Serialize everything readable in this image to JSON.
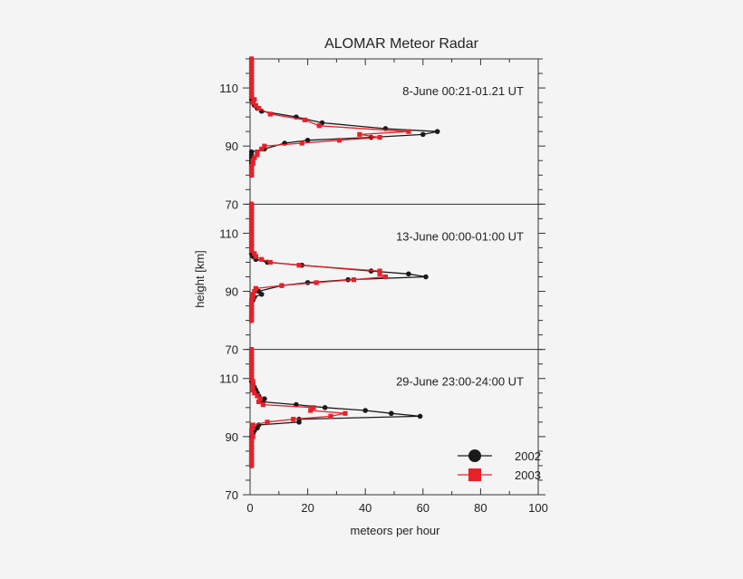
{
  "chart_data": {
    "type": "line",
    "title": "ALOMAR Meteor Radar",
    "xlabel": "meteors per hour",
    "ylabel": "height [km]",
    "xlim": [
      0,
      100
    ],
    "xticks": [
      0,
      20,
      40,
      60,
      80,
      100
    ],
    "ylim": [
      70,
      120
    ],
    "yticks": [
      70,
      90,
      110
    ],
    "legend": {
      "position": "bottom-right",
      "entries": [
        "2002",
        "2003"
      ]
    },
    "colors": {
      "2002": "#1a1a1a",
      "2003": "#e8202a"
    },
    "panels": [
      {
        "label": "8-June  00:21-01.21 UT",
        "series": [
          {
            "name": "2002",
            "marker": "circle",
            "points": [
              [
                0.5,
                120
              ],
              [
                0.5,
                119
              ],
              [
                0.5,
                118
              ],
              [
                0.5,
                117
              ],
              [
                0.5,
                116
              ],
              [
                0.5,
                115
              ],
              [
                0.5,
                114
              ],
              [
                0.5,
                113
              ],
              [
                0.5,
                112
              ],
              [
                0.5,
                111
              ],
              [
                0.5,
                110
              ],
              [
                0.5,
                109
              ],
              [
                0.5,
                108
              ],
              [
                0.5,
                107
              ],
              [
                0.5,
                106
              ],
              [
                1,
                105
              ],
              [
                1.5,
                104
              ],
              [
                2.5,
                103
              ],
              [
                4,
                102
              ],
              [
                16,
                100
              ],
              [
                25,
                98
              ],
              [
                47,
                96
              ],
              [
                65,
                95
              ],
              [
                60,
                94
              ],
              [
                42,
                93
              ],
              [
                20,
                92
              ],
              [
                12,
                91
              ],
              [
                5,
                89
              ],
              [
                0.5,
                88
              ],
              [
                0.5,
                87
              ],
              [
                0.5,
                86
              ],
              [
                0.5,
                85
              ],
              [
                0.5,
                84
              ],
              [
                0.5,
                83
              ],
              [
                0.5,
                82
              ],
              [
                0.5,
                81
              ],
              [
                0.5,
                80
              ]
            ]
          },
          {
            "name": "2003",
            "marker": "square",
            "points": [
              [
                0.5,
                120
              ],
              [
                0.5,
                119
              ],
              [
                0.5,
                118
              ],
              [
                0.5,
                117
              ],
              [
                0.5,
                116
              ],
              [
                0.5,
                115
              ],
              [
                0.5,
                114
              ],
              [
                0.5,
                113
              ],
              [
                0.5,
                112
              ],
              [
                0.5,
                111
              ],
              [
                0.5,
                110
              ],
              [
                0.5,
                109
              ],
              [
                0.5,
                108
              ],
              [
                0.5,
                107
              ],
              [
                1.5,
                106
              ],
              [
                1,
                105
              ],
              [
                2,
                104
              ],
              [
                3,
                103
              ],
              [
                7,
                101
              ],
              [
                19,
                99
              ],
              [
                24,
                97
              ],
              [
                55,
                95
              ],
              [
                38,
                94
              ],
              [
                45,
                93
              ],
              [
                31,
                92
              ],
              [
                18,
                91
              ],
              [
                5,
                90
              ],
              [
                4,
                89
              ],
              [
                2.5,
                88
              ],
              [
                2.5,
                87
              ],
              [
                1.5,
                86
              ],
              [
                1,
                85
              ],
              [
                1,
                84
              ],
              [
                0.5,
                83
              ],
              [
                0.5,
                82
              ],
              [
                0.5,
                81
              ],
              [
                0.5,
                80
              ]
            ]
          }
        ]
      },
      {
        "label": "13-June 00:00-01:00 UT",
        "series": [
          {
            "name": "2002",
            "marker": "circle",
            "points": [
              [
                0.5,
                120
              ],
              [
                0.5,
                119
              ],
              [
                0.5,
                118
              ],
              [
                0.5,
                117
              ],
              [
                0.5,
                116
              ],
              [
                0.5,
                115
              ],
              [
                0.5,
                114
              ],
              [
                0.5,
                113
              ],
              [
                0.5,
                112
              ],
              [
                0.5,
                111
              ],
              [
                0.5,
                110
              ],
              [
                0.5,
                109
              ],
              [
                0.5,
                108
              ],
              [
                0.5,
                107
              ],
              [
                0.5,
                106
              ],
              [
                0.5,
                105
              ],
              [
                0.5,
                104
              ],
              [
                0.5,
                103
              ],
              [
                1,
                102
              ],
              [
                2,
                101
              ],
              [
                6,
                100
              ],
              [
                18,
                99
              ],
              [
                42,
                97
              ],
              [
                55,
                96
              ],
              [
                61,
                95
              ],
              [
                34,
                94
              ],
              [
                20,
                93
              ],
              [
                11,
                92
              ],
              [
                3,
                90
              ],
              [
                4,
                89
              ],
              [
                1.5,
                88
              ],
              [
                1,
                87
              ],
              [
                0.5,
                86
              ],
              [
                0.5,
                85
              ],
              [
                0.5,
                84
              ],
              [
                0.5,
                83
              ],
              [
                0.5,
                82
              ],
              [
                0.5,
                81
              ],
              [
                0.5,
                80
              ]
            ]
          },
          {
            "name": "2003",
            "marker": "square",
            "points": [
              [
                0.5,
                120
              ],
              [
                0.5,
                119
              ],
              [
                0.5,
                118
              ],
              [
                0.5,
                117
              ],
              [
                0.5,
                116
              ],
              [
                0.5,
                115
              ],
              [
                0.5,
                114
              ],
              [
                0.5,
                113
              ],
              [
                0.5,
                112
              ],
              [
                0.5,
                111
              ],
              [
                0.5,
                110
              ],
              [
                0.5,
                109
              ],
              [
                0.5,
                108
              ],
              [
                0.5,
                107
              ],
              [
                0.5,
                106
              ],
              [
                0.5,
                105
              ],
              [
                0.5,
                104
              ],
              [
                1.5,
                103
              ],
              [
                2,
                102
              ],
              [
                4,
                101
              ],
              [
                7,
                100
              ],
              [
                17,
                99
              ],
              [
                45,
                97
              ],
              [
                45,
                96
              ],
              [
                47,
                95
              ],
              [
                36,
                94
              ],
              [
                23,
                93
              ],
              [
                11,
                92
              ],
              [
                2,
                91
              ],
              [
                1.5,
                90
              ],
              [
                1,
                89
              ],
              [
                1,
                88
              ],
              [
                0.5,
                87
              ],
              [
                0.5,
                86
              ],
              [
                0.5,
                85
              ],
              [
                0.5,
                84
              ],
              [
                0.5,
                83
              ],
              [
                0.5,
                82
              ],
              [
                0.5,
                81
              ],
              [
                0.5,
                80
              ]
            ]
          }
        ]
      },
      {
        "label": "29-June  23:00-24:00 UT",
        "series": [
          {
            "name": "2002",
            "marker": "circle",
            "points": [
              [
                0.5,
                120
              ],
              [
                0.5,
                119
              ],
              [
                0.5,
                118
              ],
              [
                0.5,
                117
              ],
              [
                0.5,
                116
              ],
              [
                0.5,
                115
              ],
              [
                0.5,
                114
              ],
              [
                0.5,
                113
              ],
              [
                0.5,
                112
              ],
              [
                0.5,
                111
              ],
              [
                0.5,
                110
              ],
              [
                0.5,
                109
              ],
              [
                1,
                108
              ],
              [
                1.5,
                107
              ],
              [
                2,
                106
              ],
              [
                2.5,
                105
              ],
              [
                3,
                104
              ],
              [
                5,
                103
              ],
              [
                4,
                102
              ],
              [
                16,
                101
              ],
              [
                26,
                100
              ],
              [
                40,
                99
              ],
              [
                49,
                98
              ],
              [
                59,
                97
              ],
              [
                17,
                96
              ],
              [
                17,
                95
              ],
              [
                3,
                94
              ],
              [
                2.5,
                93
              ],
              [
                1.5,
                92
              ],
              [
                1,
                91
              ],
              [
                0.5,
                90
              ],
              [
                0.5,
                89
              ],
              [
                0.5,
                88
              ],
              [
                0.5,
                87
              ],
              [
                0.5,
                86
              ],
              [
                0.5,
                85
              ],
              [
                0.5,
                84
              ],
              [
                0.5,
                83
              ],
              [
                0.5,
                82
              ],
              [
                0.5,
                81
              ],
              [
                0.5,
                80
              ]
            ]
          },
          {
            "name": "2003",
            "marker": "square",
            "points": [
              [
                0.5,
                120
              ],
              [
                0.5,
                119
              ],
              [
                0.5,
                118
              ],
              [
                0.5,
                117
              ],
              [
                0.5,
                116
              ],
              [
                0.5,
                115
              ],
              [
                0.5,
                114
              ],
              [
                0.5,
                113
              ],
              [
                0.5,
                112
              ],
              [
                0.5,
                111
              ],
              [
                0.5,
                110
              ],
              [
                1,
                109
              ],
              [
                1,
                108
              ],
              [
                1,
                107
              ],
              [
                1,
                106
              ],
              [
                1.5,
                105
              ],
              [
                2.5,
                104
              ],
              [
                3.5,
                103
              ],
              [
                3,
                102
              ],
              [
                4.5,
                101
              ],
              [
                22,
                100
              ],
              [
                21,
                99
              ],
              [
                33,
                98
              ],
              [
                28,
                97
              ],
              [
                15,
                96
              ],
              [
                6,
                95
              ],
              [
                1,
                94
              ],
              [
                1,
                93
              ],
              [
                0.5,
                92
              ],
              [
                0.5,
                91
              ],
              [
                1,
                90
              ],
              [
                0.5,
                89
              ],
              [
                0.5,
                88
              ],
              [
                0.5,
                87
              ],
              [
                0.5,
                86
              ],
              [
                0.5,
                85
              ],
              [
                0.5,
                84
              ],
              [
                0.5,
                83
              ],
              [
                0.5,
                82
              ],
              [
                0.5,
                81
              ],
              [
                0.5,
                80
              ]
            ]
          }
        ]
      }
    ]
  }
}
